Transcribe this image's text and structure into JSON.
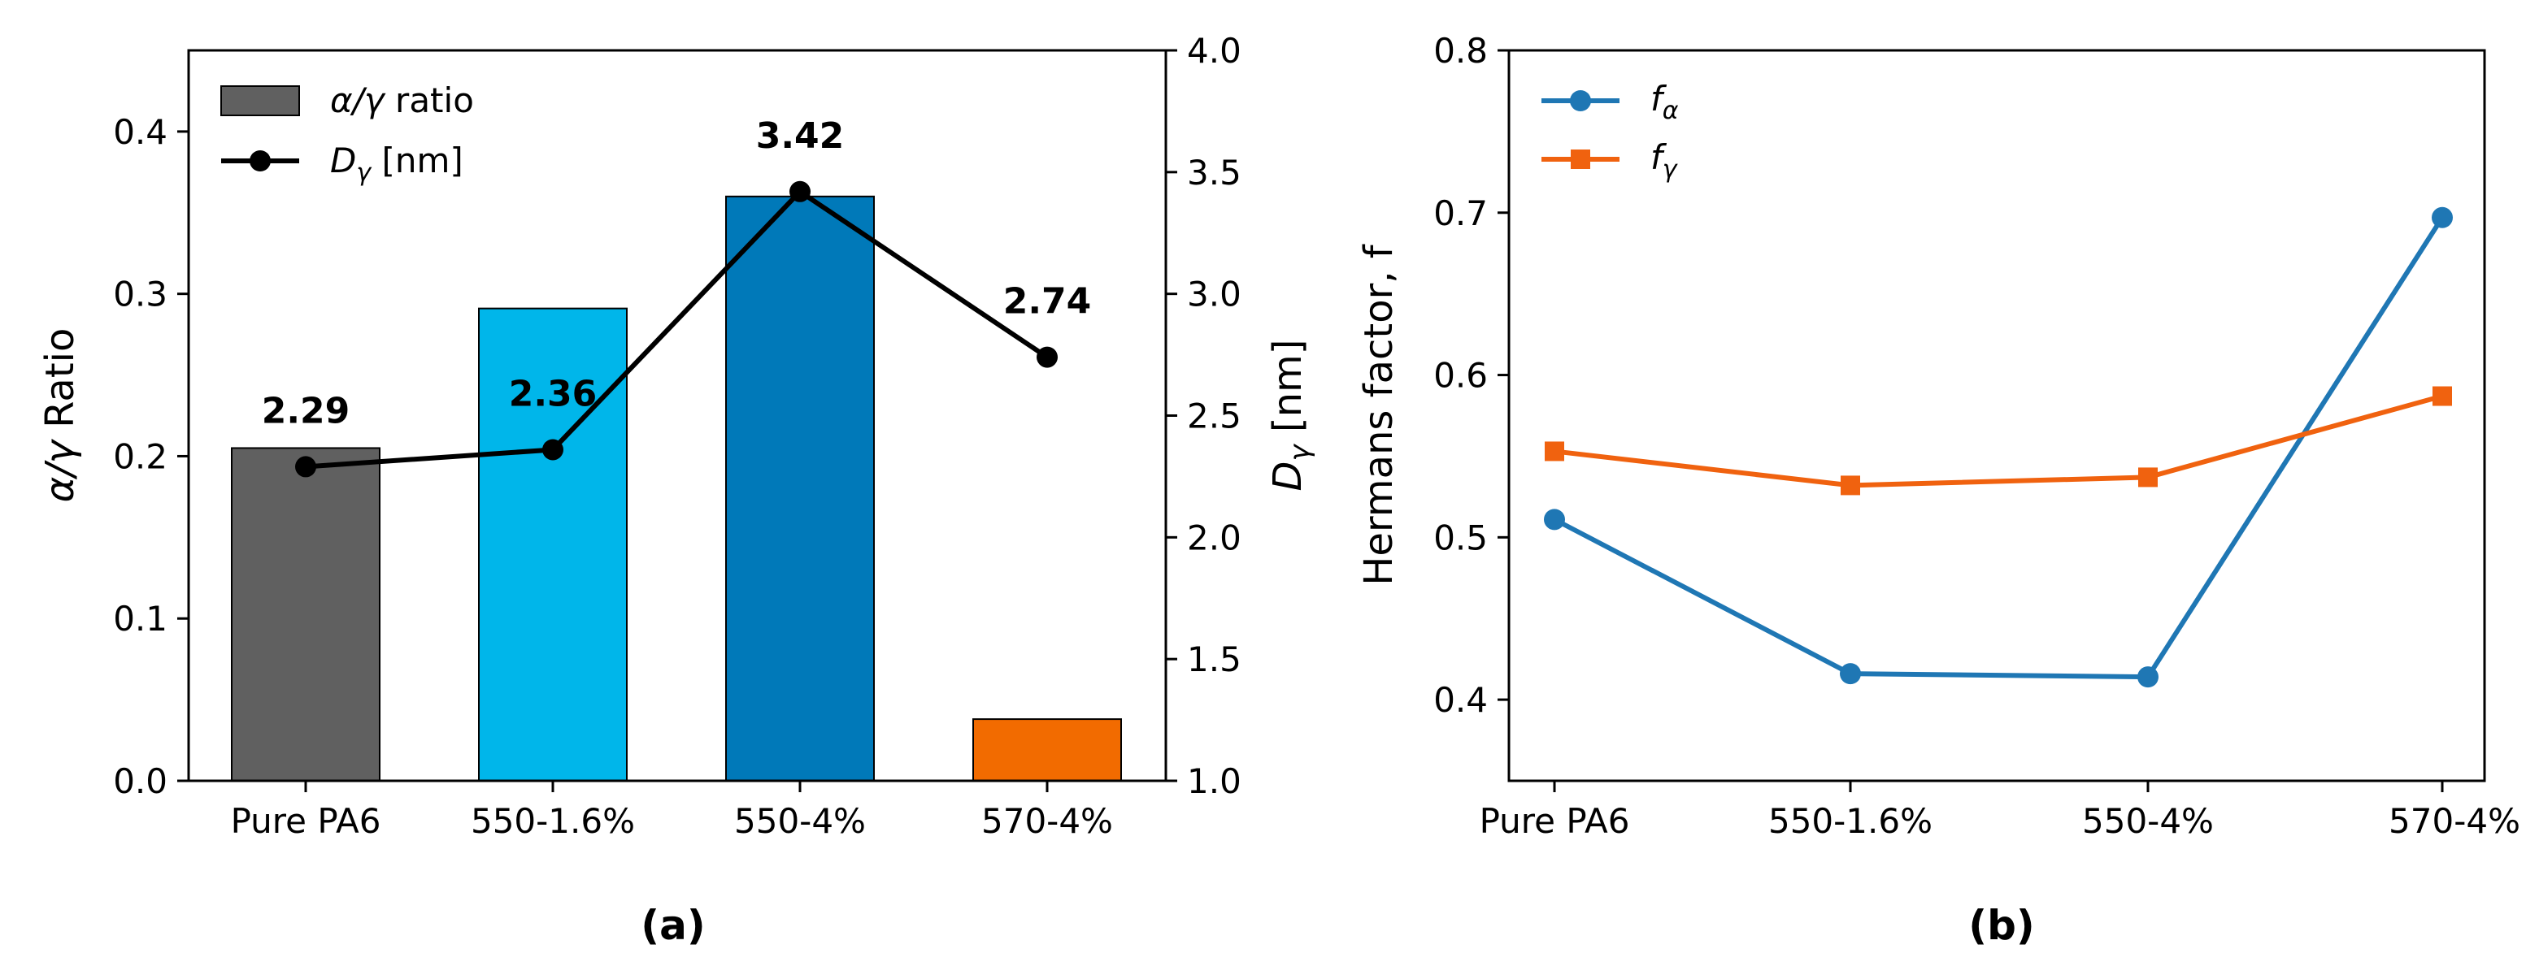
{
  "chart_data": [
    {
      "type": "bar",
      "panel_label": "(a)",
      "categories": [
        "Pure PA6",
        "550-1.6%",
        "550-4%",
        "570-4%"
      ],
      "bar_colors": [
        "#606060",
        "#00b6ea",
        "#0079b9",
        "#f26b00"
      ],
      "bar_series": {
        "name": "α/γ ratio",
        "legend_prefix": "α/γ",
        "legend_suffix": " ratio",
        "values": [
          0.205,
          0.291,
          0.36,
          0.038
        ]
      },
      "line_series": {
        "name": "Dγ [nm]",
        "legend_base": "D",
        "legend_sub": "γ",
        "legend_suffix": " [nm]",
        "values": [
          2.29,
          2.36,
          3.42,
          2.74
        ],
        "data_labels": [
          "2.29",
          "2.36",
          "3.42",
          "2.74"
        ],
        "color": "#000000"
      },
      "ylabel_left": {
        "italic": "α/γ",
        "rest": " Ratio"
      },
      "ylabel_right": {
        "base": "D",
        "sub": "γ",
        "rest": " [nm]"
      },
      "ylim_left": [
        0,
        0.45
      ],
      "yticks_left": [
        "0.0",
        "0.1",
        "0.2",
        "0.3",
        "0.4"
      ],
      "ylim_right": [
        1.0,
        4.0
      ],
      "yticks_right": [
        "1.0",
        "1.5",
        "2.0",
        "2.5",
        "3.0",
        "3.5",
        "4.0"
      ],
      "legend_position": "top-left"
    },
    {
      "type": "line",
      "panel_label": "(b)",
      "categories": [
        "Pure PA6",
        "550-1.6%",
        "550-4%",
        "570-4%"
      ],
      "series": [
        {
          "name": "fα",
          "legend_base": "f",
          "legend_sub": "α",
          "values": [
            0.511,
            0.416,
            0.414,
            0.697
          ],
          "color": "#1f77b4",
          "marker": "circle"
        },
        {
          "name": "fγ",
          "legend_base": "f",
          "legend_sub": "γ",
          "values": [
            0.553,
            0.532,
            0.537,
            0.587
          ],
          "color": "#f0620f",
          "marker": "square"
        }
      ],
      "ylabel": "Hermans factor, f",
      "ylim": [
        0.35,
        0.8
      ],
      "yticks": [
        "0.4",
        "0.5",
        "0.6",
        "0.7",
        "0.8"
      ],
      "legend_position": "top-left"
    }
  ]
}
